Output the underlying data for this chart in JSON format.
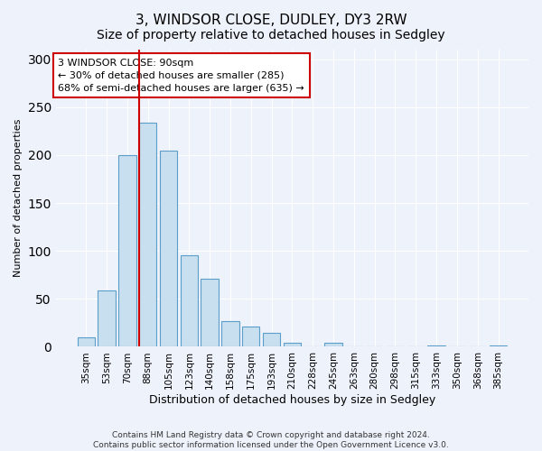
{
  "title": "3, WINDSOR CLOSE, DUDLEY, DY3 2RW",
  "subtitle": "Size of property relative to detached houses in Sedgley",
  "xlabel": "Distribution of detached houses by size in Sedgley",
  "ylabel": "Number of detached properties",
  "bar_labels": [
    "35sqm",
    "53sqm",
    "70sqm",
    "88sqm",
    "105sqm",
    "123sqm",
    "140sqm",
    "158sqm",
    "175sqm",
    "193sqm",
    "210sqm",
    "228sqm",
    "245sqm",
    "263sqm",
    "280sqm",
    "298sqm",
    "315sqm",
    "333sqm",
    "350sqm",
    "368sqm",
    "385sqm"
  ],
  "bar_values": [
    10,
    59,
    200,
    234,
    205,
    95,
    71,
    27,
    21,
    15,
    4,
    0,
    4,
    0,
    0,
    0,
    0,
    1,
    0,
    0,
    1
  ],
  "bar_color": "#c8dff0",
  "bar_edge_color": "#5a9ec9",
  "vline_index": 3,
  "vline_color": "#cc0000",
  "ylim": [
    0,
    310
  ],
  "yticks": [
    0,
    50,
    100,
    150,
    200,
    250,
    300
  ],
  "annotation_title": "3 WINDSOR CLOSE: 90sqm",
  "annotation_line1": "← 30% of detached houses are smaller (285)",
  "annotation_line2": "68% of semi-detached houses are larger (635) →",
  "annotation_box_color": "#ffffff",
  "annotation_box_edge": "#cc0000",
  "footer_line1": "Contains HM Land Registry data © Crown copyright and database right 2024.",
  "footer_line2": "Contains public sector information licensed under the Open Government Licence v3.0.",
  "bg_color": "#eef2fb",
  "plot_bg_color": "#eef2fb",
  "grid_color": "#ffffff",
  "title_fontsize": 11,
  "subtitle_fontsize": 10,
  "ylabel_fontsize": 8,
  "xlabel_fontsize": 9,
  "tick_fontsize": 7.5,
  "annotation_fontsize": 8,
  "footer_fontsize": 6.5
}
